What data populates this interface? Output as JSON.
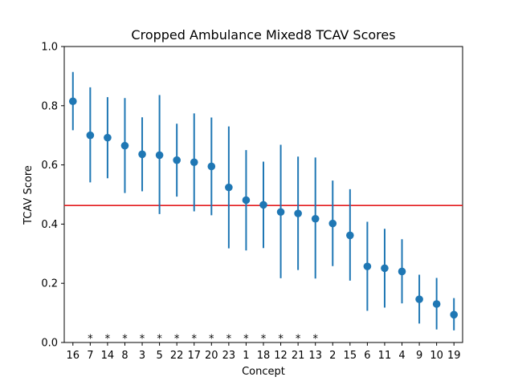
{
  "chart_data": {
    "type": "scatter",
    "title": "Cropped Ambulance Mixed8 TCAV Scores",
    "xlabel": "Concept",
    "ylabel": "TCAV Score",
    "ylim": [
      0.0,
      1.0
    ],
    "yticks": [
      "0.0",
      "0.2",
      "0.4",
      "0.6",
      "0.8",
      "1.0"
    ],
    "grid": false,
    "reference_line": 0.463,
    "colors": {
      "points": "#1f77b4",
      "reference_line": "#e31a1c"
    },
    "categories": [
      "16",
      "7",
      "14",
      "8",
      "3",
      "5",
      "22",
      "17",
      "20",
      "23",
      "1",
      "18",
      "12",
      "21",
      "13",
      "2",
      "15",
      "6",
      "11",
      "4",
      "9",
      "10",
      "19"
    ],
    "values": [
      0.815,
      0.7,
      0.692,
      0.665,
      0.636,
      0.633,
      0.616,
      0.609,
      0.595,
      0.524,
      0.481,
      0.465,
      0.441,
      0.436,
      0.418,
      0.402,
      0.362,
      0.257,
      0.251,
      0.24,
      0.146,
      0.13,
      0.094
    ],
    "error_low": [
      0.717,
      0.541,
      0.555,
      0.505,
      0.511,
      0.434,
      0.493,
      0.443,
      0.43,
      0.318,
      0.311,
      0.319,
      0.217,
      0.245,
      0.216,
      0.258,
      0.209,
      0.107,
      0.118,
      0.132,
      0.064,
      0.044,
      0.041
    ],
    "error_high": [
      0.914,
      0.862,
      0.829,
      0.826,
      0.761,
      0.836,
      0.739,
      0.774,
      0.76,
      0.73,
      0.65,
      0.611,
      0.668,
      0.628,
      0.625,
      0.547,
      0.518,
      0.408,
      0.384,
      0.349,
      0.229,
      0.218,
      0.15
    ],
    "significance_marker": "*",
    "significant": [
      false,
      true,
      true,
      true,
      true,
      true,
      true,
      true,
      true,
      true,
      true,
      true,
      true,
      true,
      true,
      false,
      false,
      false,
      false,
      false,
      false,
      false,
      false
    ]
  }
}
